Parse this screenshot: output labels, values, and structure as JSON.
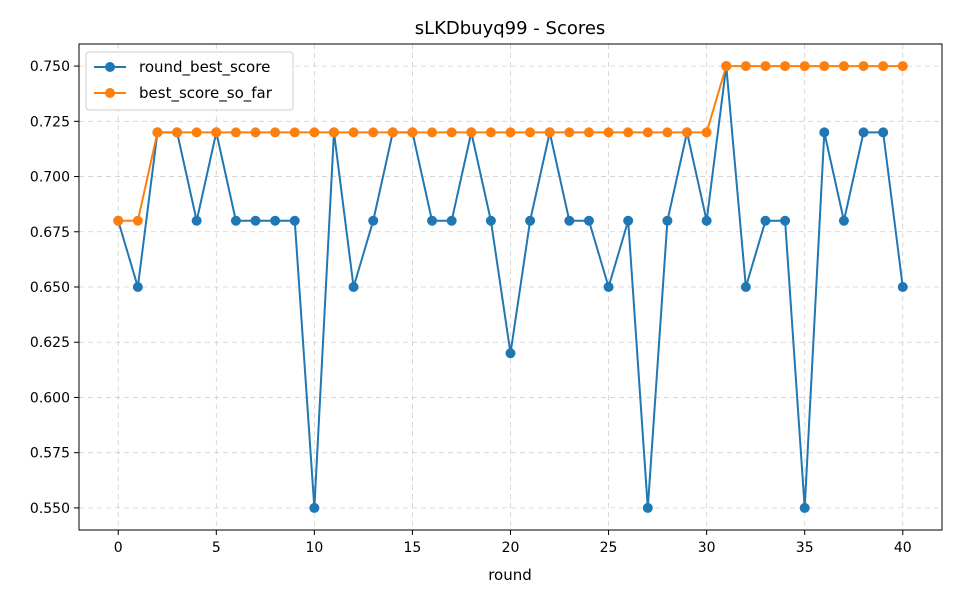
{
  "chart_data": {
    "type": "line",
    "title": "sLKDbuyq99 - Scores",
    "xlabel": "round",
    "ylabel": "",
    "xlim": [
      -2,
      42
    ],
    "ylim": [
      0.54,
      0.76
    ],
    "xticks": [
      0,
      5,
      10,
      15,
      20,
      25,
      30,
      35,
      40
    ],
    "yticks": [
      0.55,
      0.575,
      0.6,
      0.625,
      0.65,
      0.675,
      0.7,
      0.725,
      0.75
    ],
    "ytick_labels": [
      "0.550",
      "0.575",
      "0.600",
      "0.625",
      "0.650",
      "0.675",
      "0.700",
      "0.725",
      "0.750"
    ],
    "grid": true,
    "legend_position": "upper-left",
    "x": [
      0,
      1,
      2,
      3,
      4,
      5,
      6,
      7,
      8,
      9,
      10,
      11,
      12,
      13,
      14,
      15,
      16,
      17,
      18,
      19,
      20,
      21,
      22,
      23,
      24,
      25,
      26,
      27,
      28,
      29,
      30,
      31,
      32,
      33,
      34,
      35,
      36,
      37,
      38,
      39,
      40
    ],
    "series": [
      {
        "name": "round_best_score",
        "color": "#1f77b4",
        "values": [
          0.68,
          0.65,
          0.72,
          0.72,
          0.68,
          0.72,
          0.68,
          0.68,
          0.68,
          0.68,
          0.55,
          0.72,
          0.65,
          0.68,
          0.72,
          0.72,
          0.68,
          0.68,
          0.72,
          0.68,
          0.62,
          0.68,
          0.72,
          0.68,
          0.68,
          0.65,
          0.68,
          0.55,
          0.68,
          0.72,
          0.68,
          0.75,
          0.65,
          0.68,
          0.68,
          0.55,
          0.72,
          0.68,
          0.72,
          0.72,
          0.65
        ]
      },
      {
        "name": "best_score_so_far",
        "color": "#ff7f0e",
        "values": [
          0.68,
          0.68,
          0.72,
          0.72,
          0.72,
          0.72,
          0.72,
          0.72,
          0.72,
          0.72,
          0.72,
          0.72,
          0.72,
          0.72,
          0.72,
          0.72,
          0.72,
          0.72,
          0.72,
          0.72,
          0.72,
          0.72,
          0.72,
          0.72,
          0.72,
          0.72,
          0.72,
          0.72,
          0.72,
          0.72,
          0.72,
          0.75,
          0.75,
          0.75,
          0.75,
          0.75,
          0.75,
          0.75,
          0.75,
          0.75,
          0.75
        ]
      }
    ]
  }
}
